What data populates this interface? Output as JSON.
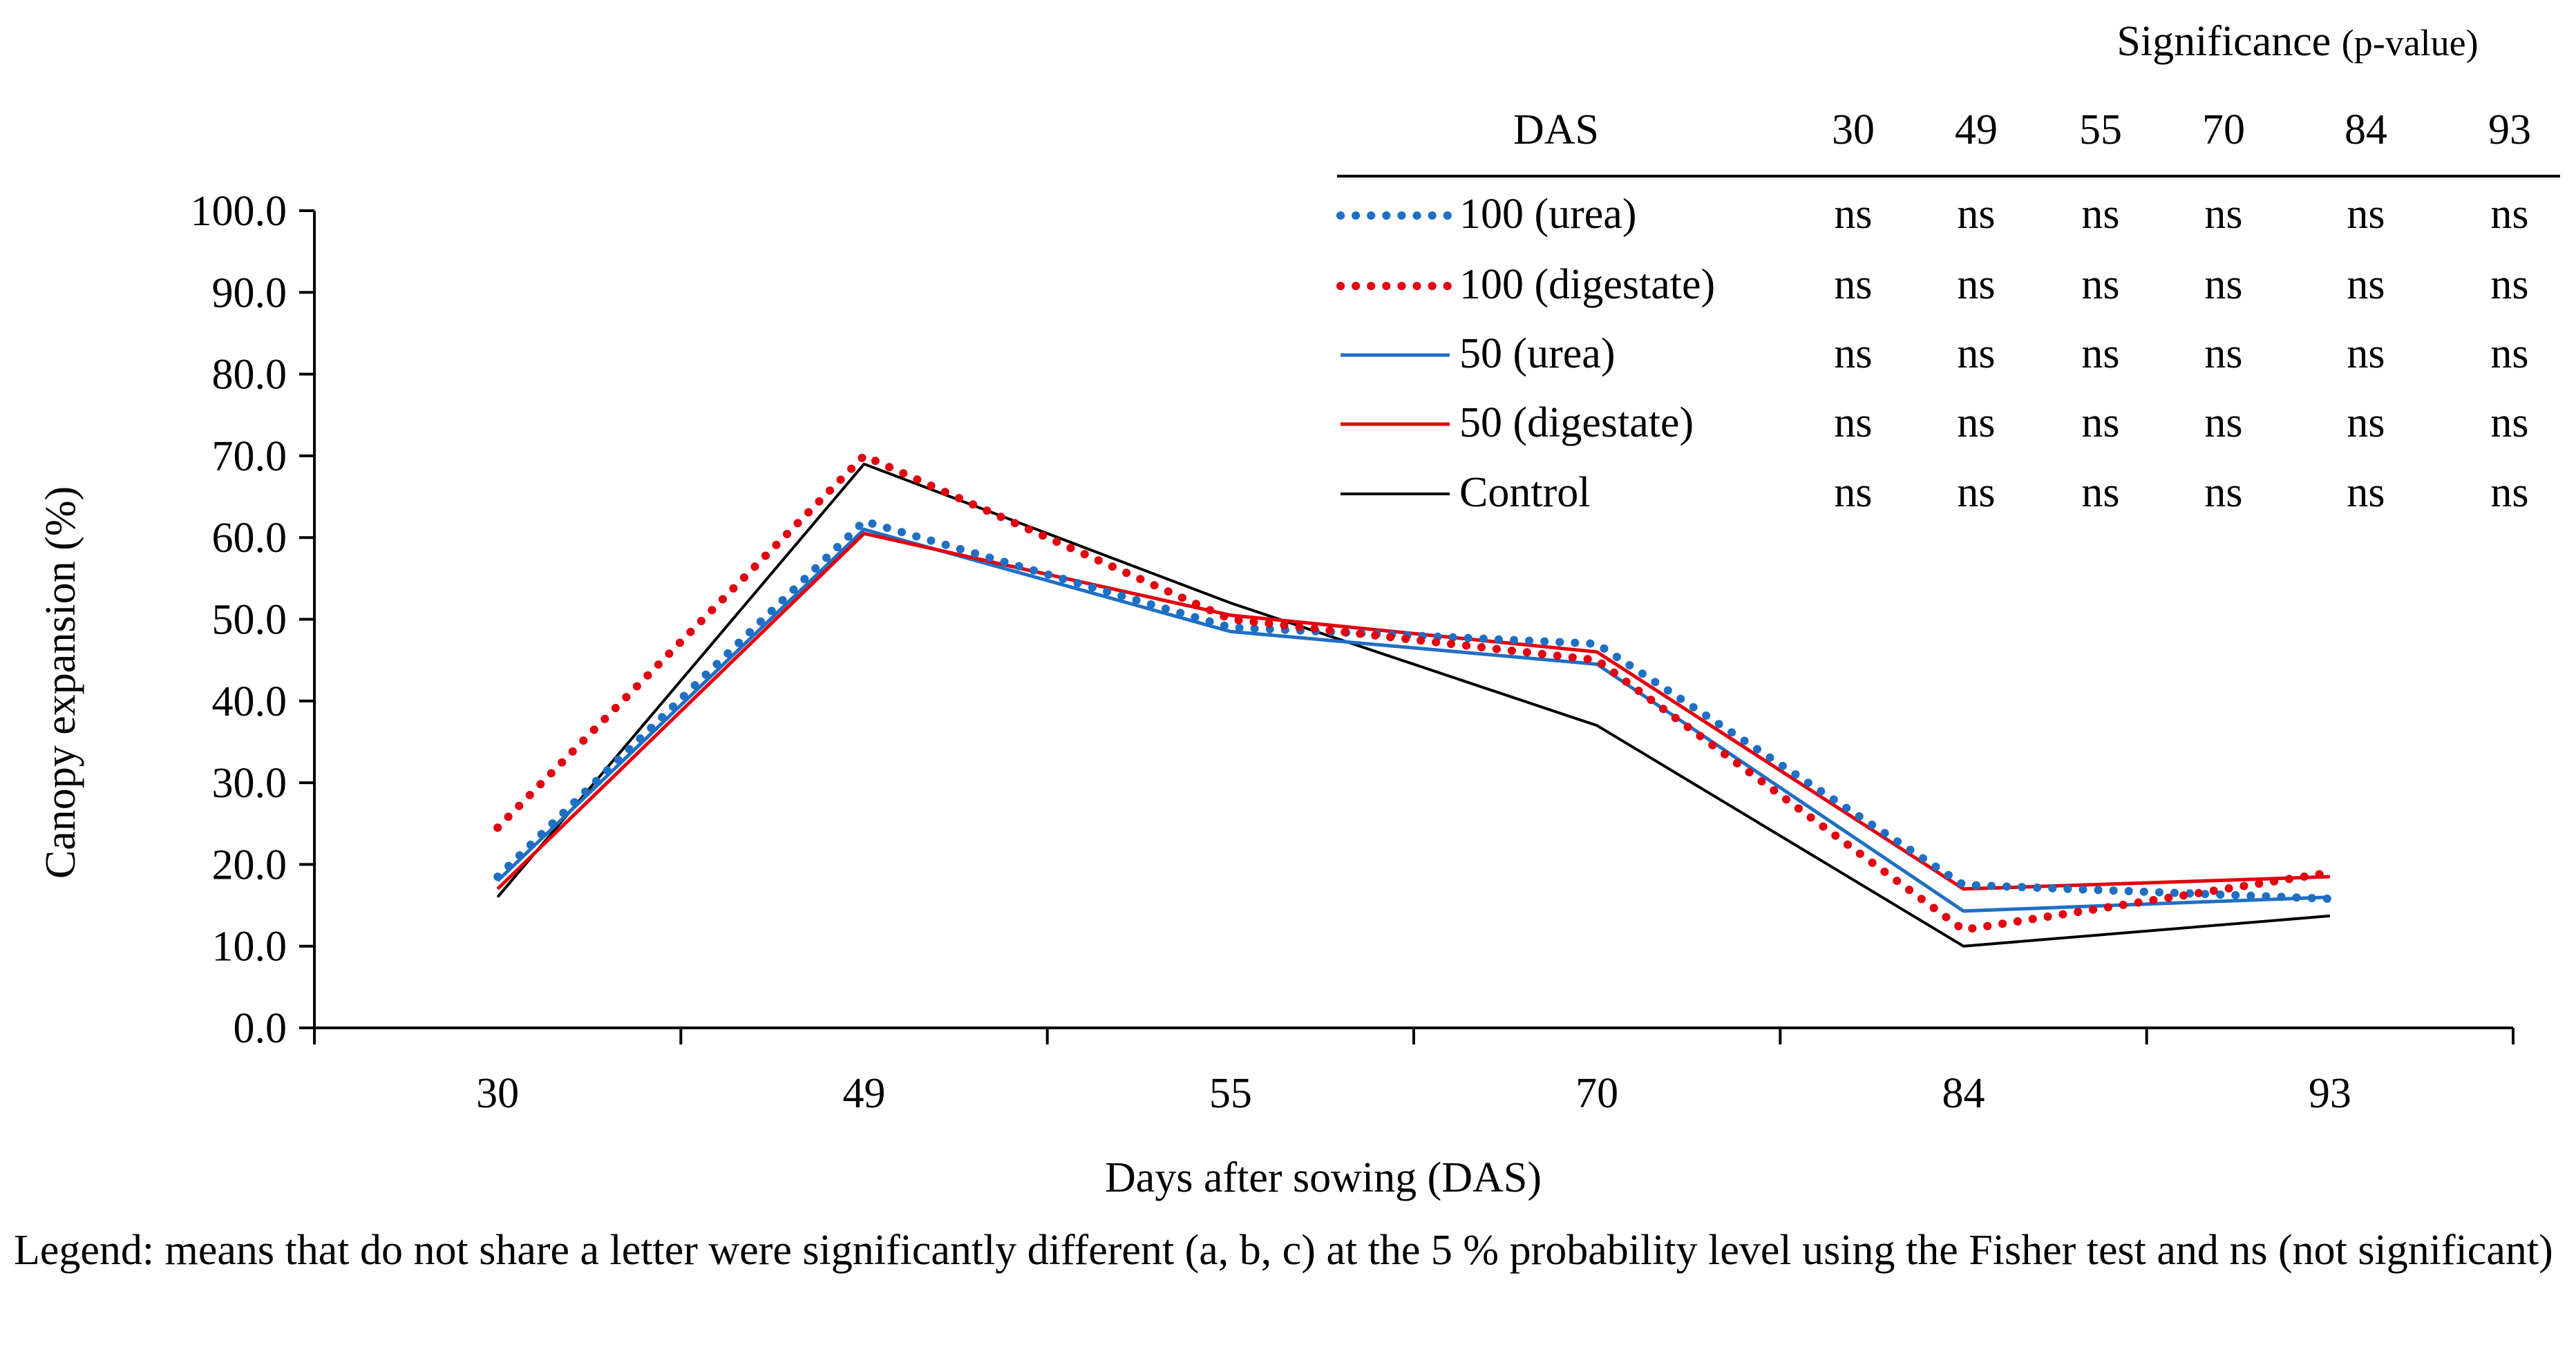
{
  "chart_data": {
    "type": "line",
    "title": "",
    "xlabel": "Days after sowing (DAS)",
    "ylabel": "Canopy expansion (%)",
    "categories": [
      "30",
      "49",
      "55",
      "70",
      "84",
      "93"
    ],
    "ylim": [
      0,
      100
    ],
    "ytick_labels": [
      "0.0",
      "10.0",
      "20.0",
      "30.0",
      "40.0",
      "50.0",
      "60.0",
      "70.0",
      "80.0",
      "90.0",
      "100.0"
    ],
    "series": [
      {
        "name": "100 (urea)",
        "color": "#1f6fc4",
        "style": "dotted",
        "values": [
          18.5,
          62.0,
          49.0,
          47.0,
          17.5,
          15.8
        ]
      },
      {
        "name": "100 (digestate)",
        "color": "#e3000f",
        "style": "dotted",
        "values": [
          24.5,
          70.0,
          50.0,
          45.0,
          12.0,
          19.0
        ]
      },
      {
        "name": "50 (urea)",
        "color": "#1f6fc4",
        "style": "solid",
        "values": [
          18.0,
          61.0,
          48.5,
          44.5,
          14.3,
          16.0
        ]
      },
      {
        "name": "50 (digestate)",
        "color": "#e3000f",
        "style": "solid",
        "values": [
          17.0,
          60.5,
          50.5,
          46.0,
          17.0,
          18.5
        ]
      },
      {
        "name": "Control",
        "color": "#000000",
        "style": "solid",
        "values": [
          16.0,
          69.0,
          52.0,
          37.0,
          10.0,
          13.7
        ]
      }
    ],
    "legend_position": "top-right (table)"
  },
  "significance_table": {
    "title": "Significance",
    "title_suffix": "(p-value)",
    "header_label": "DAS",
    "columns": [
      "30",
      "49",
      "55",
      "70",
      "84",
      "93"
    ],
    "rows": [
      {
        "series": "100 (urea)",
        "values": [
          "ns",
          "ns",
          "ns",
          "ns",
          "ns",
          "ns"
        ]
      },
      {
        "series": "100 (digestate)",
        "values": [
          "ns",
          "ns",
          "ns",
          "ns",
          "ns",
          "ns"
        ]
      },
      {
        "series": "50 (urea)",
        "values": [
          "ns",
          "ns",
          "ns",
          "ns",
          "ns",
          "ns"
        ]
      },
      {
        "series": "50 (digestate)",
        "values": [
          "ns",
          "ns",
          "ns",
          "ns",
          "ns",
          "ns"
        ]
      },
      {
        "series": "Control",
        "values": [
          "ns",
          "ns",
          "ns",
          "ns",
          "ns",
          "ns"
        ]
      }
    ]
  },
  "caption": "Legend: means that do not share a letter were significantly different (a, b, c) at the 5 % probability level using the Fisher test and ns (not significant)"
}
